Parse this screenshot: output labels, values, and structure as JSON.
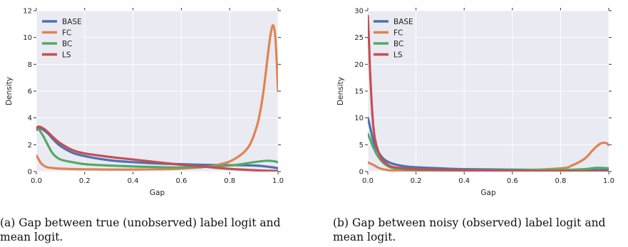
{
  "colors": {
    "BASE": "#4c72b0",
    "FC": "#dd8452",
    "BC": "#55a868",
    "LS": "#c44e52",
    "plot_bg": "#eaeaf2",
    "grid": "#ffffff"
  },
  "chart_data": [
    {
      "type": "line",
      "xlabel": "Gap",
      "ylabel": "Density",
      "xlim": [
        0.0,
        1.0
      ],
      "ylim": [
        0,
        12
      ],
      "xticks": [
        "0.0",
        "0.2",
        "0.4",
        "0.6",
        "0.8",
        "1.0"
      ],
      "yticks": [
        "0",
        "2",
        "4",
        "6",
        "8",
        "10",
        "12"
      ],
      "xtick_values": [
        0.0,
        0.2,
        0.4,
        0.6,
        0.8,
        1.0
      ],
      "ytick_values": [
        0,
        2,
        4,
        6,
        8,
        10,
        12
      ],
      "grid": true,
      "legend": "top-left",
      "caption": "(a) Gap between true (unobserved) label logit and mean logit.",
      "series": [
        {
          "name": "BASE",
          "x": [
            0.0,
            0.01,
            0.03,
            0.05,
            0.07,
            0.1,
            0.15,
            0.2,
            0.3,
            0.4,
            0.5,
            0.6,
            0.7,
            0.8,
            0.9,
            0.95,
            1.0
          ],
          "y": [
            3.1,
            3.25,
            3.1,
            2.8,
            2.4,
            1.9,
            1.4,
            1.15,
            0.85,
            0.7,
            0.6,
            0.55,
            0.5,
            0.48,
            0.45,
            0.38,
            0.25
          ]
        },
        {
          "name": "FC",
          "x": [
            0.0,
            0.01,
            0.02,
            0.04,
            0.06,
            0.1,
            0.2,
            0.3,
            0.4,
            0.5,
            0.6,
            0.7,
            0.75,
            0.8,
            0.85,
            0.88,
            0.9,
            0.92,
            0.94,
            0.96,
            0.97,
            0.98,
            0.99,
            1.0
          ],
          "y": [
            1.2,
            0.9,
            0.6,
            0.35,
            0.28,
            0.22,
            0.17,
            0.15,
            0.15,
            0.17,
            0.22,
            0.35,
            0.5,
            0.75,
            1.3,
            1.9,
            2.7,
            3.9,
            6.0,
            9.0,
            10.3,
            10.9,
            9.8,
            6.0
          ]
        },
        {
          "name": "BC",
          "x": [
            0.0,
            0.01,
            0.03,
            0.05,
            0.07,
            0.1,
            0.15,
            0.2,
            0.3,
            0.4,
            0.5,
            0.6,
            0.7,
            0.8,
            0.85,
            0.9,
            0.95,
            0.98,
            1.0
          ],
          "y": [
            3.3,
            3.15,
            2.6,
            1.9,
            1.3,
            0.9,
            0.7,
            0.55,
            0.45,
            0.38,
            0.33,
            0.3,
            0.35,
            0.45,
            0.55,
            0.7,
            0.8,
            0.78,
            0.7
          ]
        },
        {
          "name": "LS",
          "x": [
            0.0,
            0.01,
            0.03,
            0.05,
            0.07,
            0.1,
            0.15,
            0.2,
            0.3,
            0.4,
            0.5,
            0.6,
            0.7,
            0.8,
            0.9,
            0.95,
            1.0
          ],
          "y": [
            3.2,
            3.35,
            3.2,
            2.9,
            2.55,
            2.1,
            1.6,
            1.35,
            1.1,
            0.9,
            0.7,
            0.5,
            0.35,
            0.2,
            0.1,
            0.06,
            0.05
          ]
        }
      ]
    },
    {
      "type": "line",
      "xlabel": "Gap",
      "ylabel": "Density",
      "xlim": [
        0.0,
        1.0
      ],
      "ylim": [
        0,
        30
      ],
      "xticks": [
        "0.0",
        "0.2",
        "0.4",
        "0.6",
        "0.8",
        "1.0"
      ],
      "yticks": [
        "0",
        "5",
        "10",
        "15",
        "20",
        "25",
        "30"
      ],
      "xtick_values": [
        0.0,
        0.2,
        0.4,
        0.6,
        0.8,
        1.0
      ],
      "ytick_values": [
        0,
        5,
        10,
        15,
        20,
        25,
        30
      ],
      "grid": true,
      "legend": "top-left",
      "caption": "(b) Gap between noisy (observed) label logit and mean logit.",
      "series": [
        {
          "name": "BASE",
          "x": [
            0.0,
            0.01,
            0.02,
            0.03,
            0.05,
            0.07,
            0.1,
            0.15,
            0.2,
            0.3,
            0.4,
            0.6,
            0.8,
            0.9,
            1.0
          ],
          "y": [
            10.0,
            8.2,
            6.2,
            4.8,
            3.2,
            2.2,
            1.5,
            1.0,
            0.8,
            0.6,
            0.45,
            0.35,
            0.3,
            0.3,
            0.25
          ]
        },
        {
          "name": "FC",
          "x": [
            0.0,
            0.02,
            0.05,
            0.08,
            0.1,
            0.2,
            0.4,
            0.6,
            0.8,
            0.85,
            0.9,
            0.93,
            0.95,
            0.97,
            0.99,
            1.0
          ],
          "y": [
            1.7,
            1.3,
            0.6,
            0.3,
            0.2,
            0.1,
            0.1,
            0.2,
            0.6,
            1.2,
            2.4,
            3.8,
            4.7,
            5.3,
            5.3,
            4.9
          ]
        },
        {
          "name": "BC",
          "x": [
            0.0,
            0.01,
            0.02,
            0.04,
            0.06,
            0.08,
            0.1,
            0.15,
            0.2,
            0.4,
            0.6,
            0.8,
            0.9,
            0.95,
            1.0
          ],
          "y": [
            7.0,
            6.0,
            4.8,
            3.0,
            1.8,
            1.1,
            0.7,
            0.4,
            0.3,
            0.25,
            0.25,
            0.3,
            0.45,
            0.7,
            0.6
          ]
        },
        {
          "name": "LS",
          "x": [
            0.0,
            0.005,
            0.01,
            0.02,
            0.03,
            0.05,
            0.07,
            0.1,
            0.15,
            0.2,
            0.3,
            0.4,
            0.6,
            0.8,
            1.0
          ],
          "y": [
            29.0,
            24.0,
            18.0,
            10.0,
            6.0,
            3.0,
            1.7,
            0.9,
            0.6,
            0.45,
            0.3,
            0.2,
            0.12,
            0.05,
            0.03
          ]
        }
      ]
    }
  ]
}
